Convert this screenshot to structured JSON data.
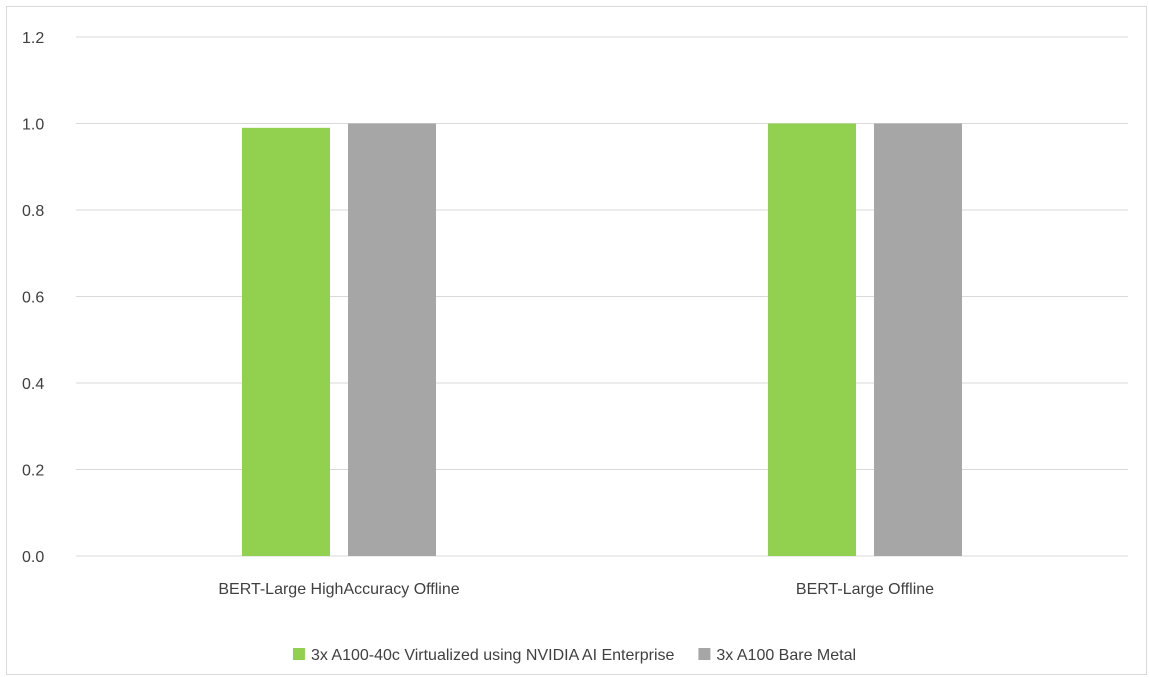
{
  "chart_data": {
    "type": "bar",
    "title": "",
    "xlabel": "",
    "ylabel": "",
    "categories": [
      "BERT-Large HighAccuracy Offline",
      "BERT-Large Offline"
    ],
    "series": [
      {
        "name": "3x A100-40c Virtualized using NVIDIA AI Enterprise",
        "color": "#92d050",
        "values": [
          0.99,
          1.0
        ]
      },
      {
        "name": "3x A100 Bare Metal",
        "color": "#a6a6a6",
        "values": [
          1.0,
          1.0
        ]
      }
    ],
    "ylim": [
      0,
      1.2
    ],
    "yticks": [
      "0.0",
      "0.2",
      "0.4",
      "0.6",
      "0.8",
      "1.0",
      "1.2"
    ],
    "grid": true,
    "legend_position": "bottom"
  }
}
